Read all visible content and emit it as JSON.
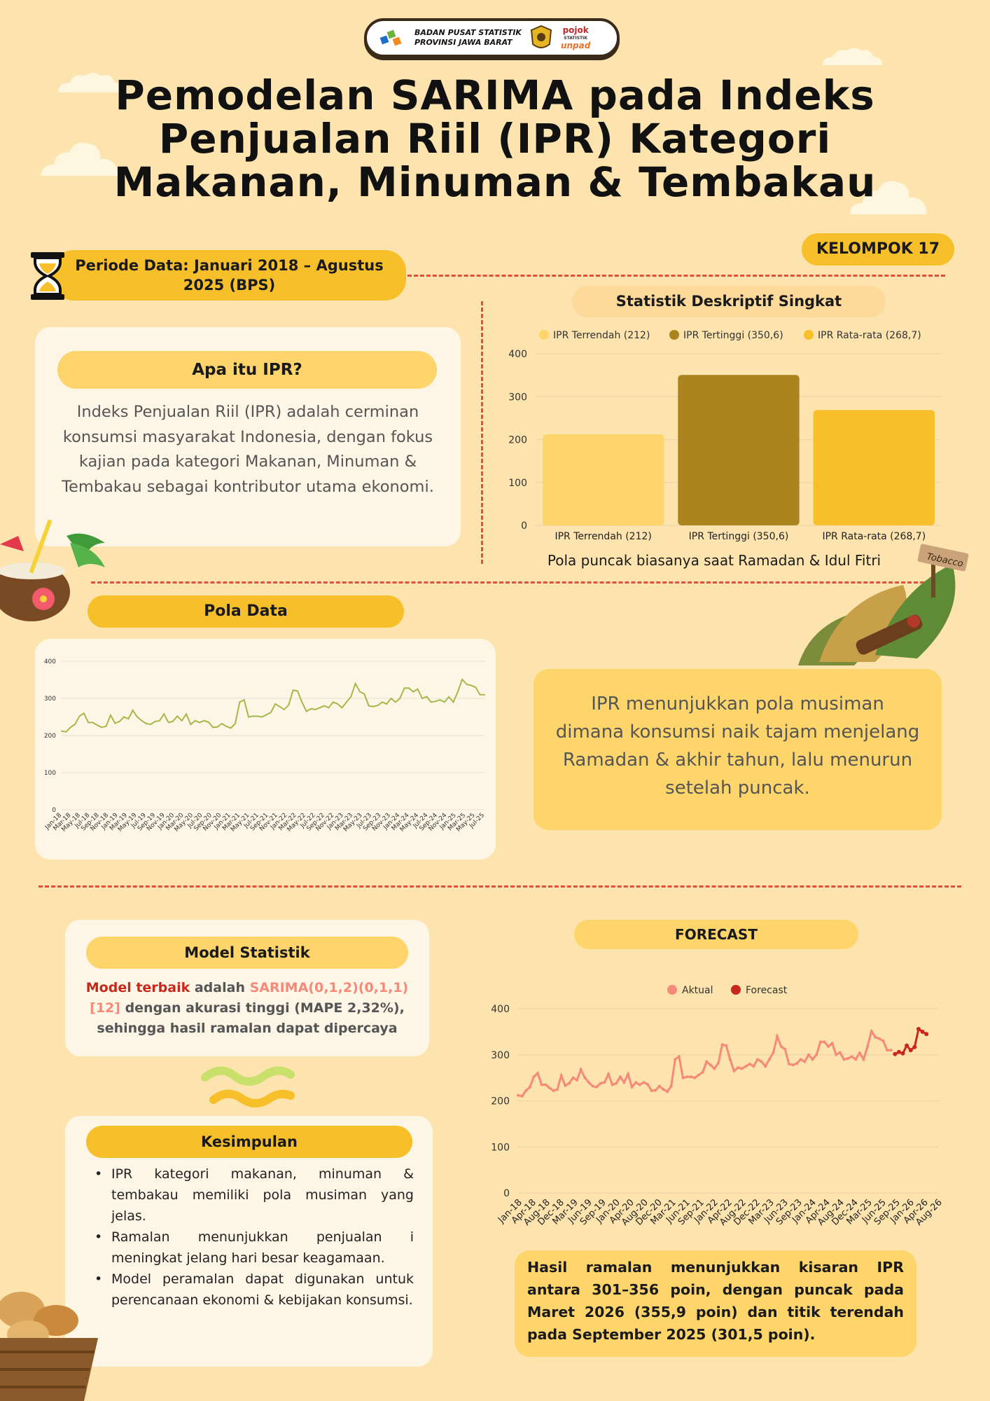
{
  "header": {
    "logo_line1": "BADAN PUSAT STATISTIK",
    "logo_line2": "PROVINSI JAWA BARAT",
    "partner_line1": "pojok",
    "partner_line2": "STATISTIK",
    "partner_line3": "unpad",
    "title_line1": "Pemodelan SARIMA pada Indeks",
    "title_line2": "Penjualan Riil (IPR) Kategori",
    "title_line3": "Makanan, Minuman & Tembakau",
    "group_badge": "KELOMPOK 17",
    "period_label": "Periode Data: Januari 2018 – Agustus 2025 (BPS)"
  },
  "ipr_card": {
    "heading": "Apa itu IPR?",
    "text": "Indeks Penjualan Riil (IPR) adalah cerminan konsumsi masyarakat Indonesia, dengan fokus kajian pada kategori Makanan, Minuman & Tembakau sebagai kontributor utama ekonomi."
  },
  "stats_section": {
    "heading": "Statistik Deskriptif Singkat",
    "note": "Pola puncak biasanya saat Ramadan & Idul Fitri"
  },
  "pattern_section": {
    "heading": "Pola Data",
    "insight": "IPR menunjukkan pola musiman dimana konsumsi naik tajam menjelang Ramadan & akhir tahun, lalu menurun setelah puncak."
  },
  "model_card": {
    "heading": "Model Statistik",
    "lead_red": "Model terbaik",
    "lead_plain": " adalah ",
    "model_name": "SARIMA(0,1,2)(0,1,1)[12]",
    "rest": " dengan akurasi tinggi (MAPE 2,32%), sehingga hasil ramalan dapat dipercaya"
  },
  "conclusion_card": {
    "heading": "Kesimpulan",
    "items": [
      "IPR kategori makanan, minuman & tembakau memiliki pola musiman yang jelas.",
      "Ramalan menunjukkan penjualan i meningkat jelang hari besar keagamaan.",
      "Model peramalan dapat digunakan untuk perencanaan ekonomi & kebijakan konsumsi."
    ]
  },
  "forecast_section": {
    "heading": "FORECAST",
    "summary": "Hasil ramalan menunjukkan kisaran IPR antara 301–356 poin, dengan puncak pada Maret 2026 (355,9 poin) dan titik terendah pada September 2025 (301,5 poin)."
  },
  "decor": {
    "tobacco_sign": "Tobacco"
  },
  "colors": {
    "background": "#fde3ad",
    "accent_yellow": "#f7c02a",
    "light_yellow": "#fdd56b",
    "olive": "#ab8420",
    "dash_red": "#e0503a",
    "line_green": "#a6b84a",
    "actual_salmon": "#f58a7a",
    "forecast_red": "#c8281c"
  },
  "chart_data": [
    {
      "type": "bar",
      "categories": [
        "IPR Terrendah (212)",
        "IPR Tertinggi (350,6)",
        "IPR Rata-rata (268,7)"
      ],
      "values": [
        212,
        350.6,
        268.7
      ],
      "legend": [
        "IPR Terrendah (212)",
        "IPR Tertinggi (350,6)",
        "IPR Rata-rata (268,7)"
      ],
      "legend_position": "top",
      "ylim": [
        0,
        400
      ],
      "yticks": [
        0,
        100,
        200,
        300,
        400
      ],
      "bar_colors": [
        "#fdd56b",
        "#ab8420",
        "#f7c02a"
      ],
      "grid": true
    },
    {
      "type": "line",
      "x_ticks": [
        "Jan-18",
        "Mar-18",
        "May-18",
        "Jul-18",
        "Sep-18",
        "Nov-18",
        "Jan-19",
        "Mar-19",
        "May-19",
        "Jul-19",
        "Sep-19",
        "Nov-19",
        "Jan-20",
        "Mar-20",
        "May-20",
        "Jul-20",
        "Sep-20",
        "Nov-20",
        "Jan-21",
        "Mar-21",
        "May-21",
        "Jul-21",
        "Sep-21",
        "Nov-21",
        "Jan-22",
        "Mar-22",
        "May-22",
        "Jul-22",
        "Sep-22",
        "Nov-22",
        "Jan-23",
        "Mar-23",
        "May-23",
        "Jul-23",
        "Sep-23",
        "Nov-23",
        "Jan-24",
        "Mar-24",
        "May-24",
        "Jul-24",
        "Sep-24",
        "Nov-24",
        "Jan-25",
        "Mar-25",
        "May-25",
        "Jul-25"
      ],
      "values": [
        212,
        210,
        222,
        230,
        252,
        260,
        235,
        235,
        228,
        222,
        225,
        255,
        233,
        238,
        250,
        245,
        268,
        250,
        240,
        232,
        230,
        238,
        240,
        258,
        235,
        238,
        252,
        240,
        258,
        230,
        240,
        235,
        240,
        236,
        222,
        223,
        232,
        225,
        220,
        232,
        290,
        296,
        250,
        252,
        252,
        250,
        256,
        262,
        285,
        278,
        270,
        282,
        322,
        320,
        290,
        265,
        272,
        270,
        275,
        280,
        275,
        290,
        285,
        275,
        290,
        305,
        340,
        318,
        312,
        280,
        278,
        281,
        290,
        285,
        300,
        290,
        300,
        328,
        328,
        318,
        325,
        300,
        305,
        290,
        292,
        296,
        290,
        304,
        290,
        318,
        351,
        338,
        335,
        330,
        310,
        310
      ],
      "ylim": [
        0,
        400
      ],
      "yticks": [
        0,
        100,
        200,
        300,
        400
      ],
      "grid": true
    },
    {
      "type": "line",
      "series": [
        {
          "name": "Aktual",
          "values": [
            212,
            210,
            222,
            230,
            252,
            260,
            235,
            235,
            228,
            222,
            225,
            255,
            233,
            238,
            250,
            245,
            268,
            250,
            240,
            232,
            230,
            238,
            240,
            258,
            235,
            238,
            252,
            240,
            258,
            230,
            240,
            235,
            240,
            236,
            222,
            223,
            232,
            225,
            220,
            232,
            290,
            296,
            250,
            252,
            252,
            250,
            256,
            262,
            285,
            278,
            270,
            282,
            322,
            320,
            290,
            265,
            272,
            270,
            275,
            280,
            275,
            290,
            285,
            275,
            290,
            305,
            340,
            318,
            312,
            280,
            278,
            281,
            290,
            285,
            300,
            290,
            300,
            328,
            328,
            318,
            325,
            300,
            305,
            290,
            292,
            296,
            290,
            304,
            290,
            318,
            351,
            338,
            335,
            330,
            310,
            310
          ]
        },
        {
          "name": "Forecast",
          "values": [
            301.5,
            306,
            303,
            320,
            310,
            317,
            355.9,
            350,
            345
          ]
        }
      ],
      "x_ticks": [
        "Jan-18",
        "Apr-18",
        "Aug-18",
        "Dec-18",
        "Mar-19",
        "Jun-19",
        "Sep-19",
        "Jan-20",
        "Apr-20",
        "Aug-20",
        "Dec-20",
        "Mar-21",
        "Jun-21",
        "Sep-21",
        "Jan-22",
        "Apr-22",
        "Aug-22",
        "Dec-22",
        "Mar-23",
        "Jun-23",
        "Sep-23",
        "Jan-24",
        "Apr-24",
        "Aug-24",
        "Dec-24",
        "Mar-25",
        "Jun-25",
        "Sep-25",
        "Jan-26",
        "Apr-26",
        "Aug-26"
      ],
      "legend_position": "top",
      "ylim": [
        0,
        400
      ],
      "yticks": [
        0,
        100,
        200,
        300,
        400
      ],
      "grid": true
    }
  ]
}
